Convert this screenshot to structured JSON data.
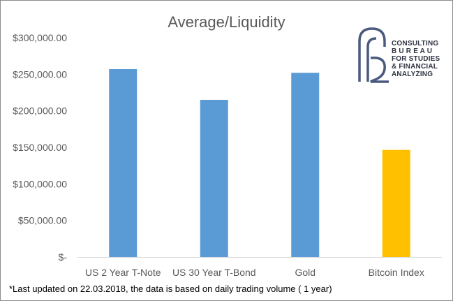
{
  "chart_data": {
    "type": "bar",
    "title": "Average/Liquidity",
    "categories": [
      "US 2 Year T-Note",
      "US 30 Year T-Bond",
      "Gold",
      "Bitcoin Index"
    ],
    "values": [
      257000,
      215000,
      252000,
      146500
    ],
    "bar_colors": [
      "#5b9bd5",
      "#5b9bd5",
      "#5b9bd5",
      "#ffc000"
    ],
    "ylim": [
      0,
      300000
    ],
    "ytick_values": [
      0,
      50000,
      100000,
      150000,
      200000,
      250000,
      300000
    ],
    "ytick_labels": [
      "$-",
      "$50,000.00",
      "$100,000.00",
      "$150,000.00",
      "$200,000.00",
      "$250,000.00",
      "$300,000.00"
    ],
    "xlabel": "",
    "ylabel": "",
    "grid": false,
    "legend": "none"
  },
  "logo": {
    "lines": [
      "CONSULTING",
      "B U R E A U",
      "FOR STUDIES",
      "& FINANCIAL",
      "ANALYZING"
    ],
    "color": "#4a5a7e"
  },
  "footnote": "*Last updated on 22.03.2018, the data is based on daily trading volume ( 1 year)"
}
